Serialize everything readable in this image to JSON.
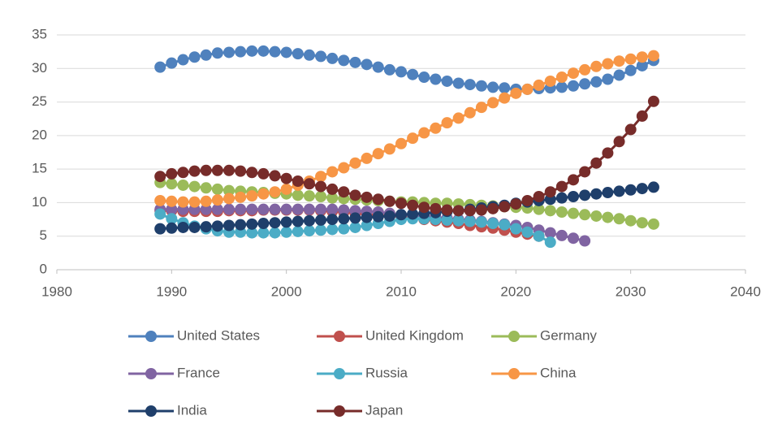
{
  "chart_data": {
    "type": "line",
    "x": [
      1989,
      1990,
      1991,
      1992,
      1993,
      1994,
      1995,
      1996,
      1997,
      1998,
      1999,
      2000,
      2001,
      2002,
      2003,
      2004,
      2005,
      2006,
      2007,
      2008,
      2009,
      2010,
      2011,
      2012,
      2013,
      2014,
      2015,
      2016,
      2017,
      2018,
      2019,
      2020,
      2021,
      2022,
      2023,
      2024,
      2025,
      2026,
      2027,
      2028,
      2029,
      2030,
      2031,
      2032
    ],
    "xlim": [
      1980,
      2040
    ],
    "xticks": [
      1980,
      1990,
      2000,
      2010,
      2020,
      2030,
      2040
    ],
    "ylim": [
      0,
      35
    ],
    "yticks": [
      0,
      5,
      10,
      15,
      20,
      25,
      30,
      35
    ],
    "grid": true,
    "series": [
      {
        "name": "United States",
        "color": "#4f81bd",
        "values": [
          30.2,
          30.8,
          31.3,
          31.7,
          32.0,
          32.3,
          32.4,
          32.5,
          32.6,
          32.6,
          32.5,
          32.4,
          32.2,
          32.0,
          31.8,
          31.5,
          31.2,
          30.9,
          30.6,
          30.2,
          29.8,
          29.5,
          29.1,
          28.7,
          28.4,
          28.1,
          27.8,
          27.6,
          27.4,
          27.2,
          27.1,
          26.9,
          26.9,
          27.0,
          27.1,
          27.2,
          27.4,
          27.7,
          28.0,
          28.4,
          29.0,
          29.7,
          30.4,
          31.2
        ]
      },
      {
        "name": "United Kingdom",
        "color": "#c0504d",
        "values": [
          8.8,
          8.8,
          8.7,
          8.7,
          8.7,
          8.7,
          8.8,
          8.8,
          8.8,
          8.9,
          8.9,
          8.9,
          8.9,
          8.9,
          8.8,
          8.7,
          8.6,
          8.4,
          8.3,
          8.1,
          8.0,
          7.9,
          7.7,
          7.5,
          7.3,
          7.1,
          6.9,
          6.6,
          6.4,
          6.2,
          5.9,
          5.6,
          5.3,
          5.0,
          null,
          null,
          null,
          null,
          null,
          null,
          null,
          null,
          null,
          null
        ]
      },
      {
        "name": "Germany",
        "color": "#9bbb59",
        "values": [
          13.0,
          12.8,
          12.6,
          12.4,
          12.2,
          12.0,
          11.8,
          11.7,
          11.6,
          11.5,
          11.4,
          11.3,
          11.1,
          11.0,
          10.9,
          10.7,
          10.6,
          10.5,
          10.4,
          10.3,
          10.2,
          10.1,
          10.1,
          10.0,
          9.9,
          9.9,
          9.8,
          9.7,
          9.6,
          9.5,
          9.4,
          9.3,
          9.2,
          9.0,
          8.8,
          8.6,
          8.4,
          8.2,
          8.0,
          7.8,
          7.6,
          7.3,
          7.0,
          6.8
        ]
      },
      {
        "name": "France",
        "color": "#8064a2",
        "values": [
          9.0,
          9.0,
          9.0,
          9.0,
          9.0,
          9.0,
          9.0,
          9.0,
          9.0,
          9.0,
          9.0,
          9.0,
          9.0,
          9.0,
          9.0,
          9.0,
          8.9,
          8.8,
          8.7,
          8.6,
          8.4,
          8.2,
          8.1,
          8.0,
          7.8,
          7.7,
          7.5,
          7.4,
          7.2,
          7.0,
          6.8,
          6.6,
          6.3,
          5.9,
          5.5,
          5.1,
          4.7,
          4.3,
          null,
          null,
          null,
          null,
          null,
          null
        ]
      },
      {
        "name": "Russia",
        "color": "#4bacc6",
        "values": [
          8.3,
          7.6,
          7.0,
          6.5,
          6.1,
          5.8,
          5.6,
          5.6,
          5.5,
          5.5,
          5.5,
          5.6,
          5.7,
          5.8,
          5.9,
          6.0,
          6.1,
          6.3,
          6.6,
          6.9,
          7.2,
          7.5,
          7.6,
          7.6,
          7.5,
          7.4,
          7.3,
          7.2,
          7.1,
          6.9,
          6.7,
          6.1,
          5.6,
          5.0,
          4.1,
          null,
          null,
          null,
          null,
          null,
          null,
          null,
          null,
          null
        ]
      },
      {
        "name": "China",
        "color": "#f79646",
        "values": [
          10.3,
          10.2,
          10.1,
          10.1,
          10.2,
          10.4,
          10.6,
          10.8,
          11.0,
          11.3,
          11.6,
          12.0,
          12.6,
          13.2,
          13.9,
          14.6,
          15.2,
          15.9,
          16.6,
          17.3,
          18.0,
          18.8,
          19.6,
          20.4,
          21.1,
          21.9,
          22.6,
          23.4,
          24.2,
          24.9,
          25.6,
          26.3,
          26.9,
          27.5,
          28.1,
          28.7,
          29.3,
          29.8,
          30.3,
          30.7,
          31.1,
          31.4,
          31.7,
          31.9
        ]
      },
      {
        "name": "India",
        "color": "#1f3f6b",
        "values": [
          6.1,
          6.2,
          6.3,
          6.3,
          6.4,
          6.5,
          6.6,
          6.7,
          6.8,
          6.9,
          7.0,
          7.1,
          7.2,
          7.3,
          7.4,
          7.5,
          7.6,
          7.7,
          7.8,
          7.9,
          8.0,
          8.2,
          8.3,
          8.4,
          8.5,
          8.7,
          8.8,
          9.0,
          9.2,
          9.4,
          9.6,
          9.9,
          10.1,
          10.3,
          10.5,
          10.7,
          10.9,
          11.1,
          11.3,
          11.5,
          11.7,
          11.9,
          12.1,
          12.3
        ]
      },
      {
        "name": "Japan",
        "color": "#772c2a",
        "values": [
          13.9,
          14.3,
          14.5,
          14.7,
          14.8,
          14.8,
          14.8,
          14.7,
          14.5,
          14.3,
          14.0,
          13.6,
          13.2,
          12.8,
          12.4,
          12.0,
          11.6,
          11.1,
          10.8,
          10.5,
          10.2,
          9.9,
          9.6,
          9.3,
          9.1,
          8.9,
          8.8,
          8.8,
          8.9,
          9.1,
          9.4,
          9.8,
          10.3,
          10.9,
          11.6,
          12.4,
          13.4,
          14.6,
          15.9,
          17.4,
          19.1,
          20.9,
          22.9,
          25.1
        ]
      }
    ]
  }
}
